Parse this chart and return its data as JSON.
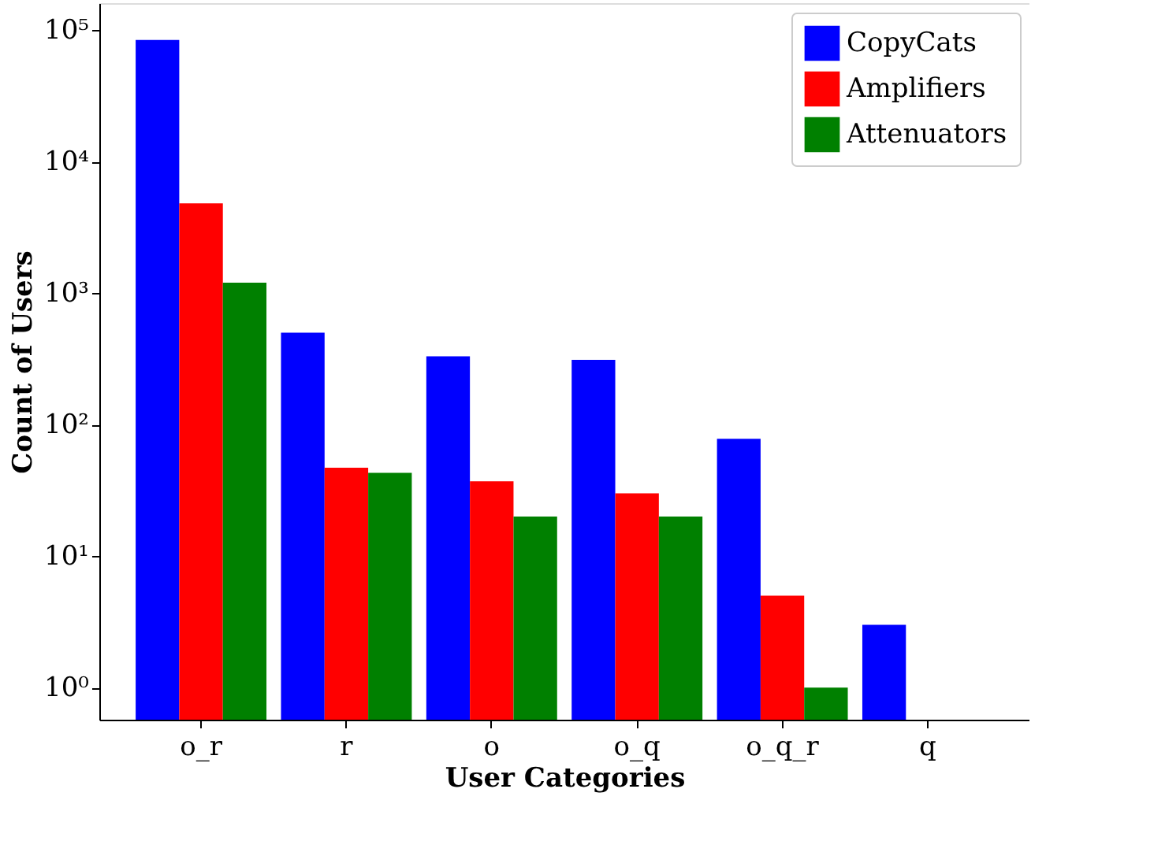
{
  "chart_data": {
    "type": "bar",
    "xlabel": "User Categories",
    "ylabel": "Count of Users",
    "categories": [
      "o_r",
      "r",
      "o",
      "o_q",
      "o_q_r",
      "q"
    ],
    "series": [
      {
        "name": "CopyCats",
        "color": "#0000ff",
        "values": [
          84000,
          500,
          330,
          310,
          78,
          3
        ]
      },
      {
        "name": "Amplifiers",
        "color": "#ff0000",
        "values": [
          4800,
          47,
          37,
          30,
          5,
          null
        ]
      },
      {
        "name": "Attenuators",
        "color": "#008000",
        "values": [
          1200,
          43,
          20,
          20,
          1,
          null
        ]
      }
    ],
    "log": true,
    "ylim": [
      0.57,
      160000
    ],
    "yticks": [
      {
        "value": 1,
        "label": "10⁰"
      },
      {
        "value": 10,
        "label": "10¹"
      },
      {
        "value": 100,
        "label": "10²"
      },
      {
        "value": 1000,
        "label": "10³"
      },
      {
        "value": 10000,
        "label": "10⁴"
      },
      {
        "value": 100000,
        "label": "10⁵"
      }
    ],
    "grid": false,
    "legend": "top right"
  }
}
